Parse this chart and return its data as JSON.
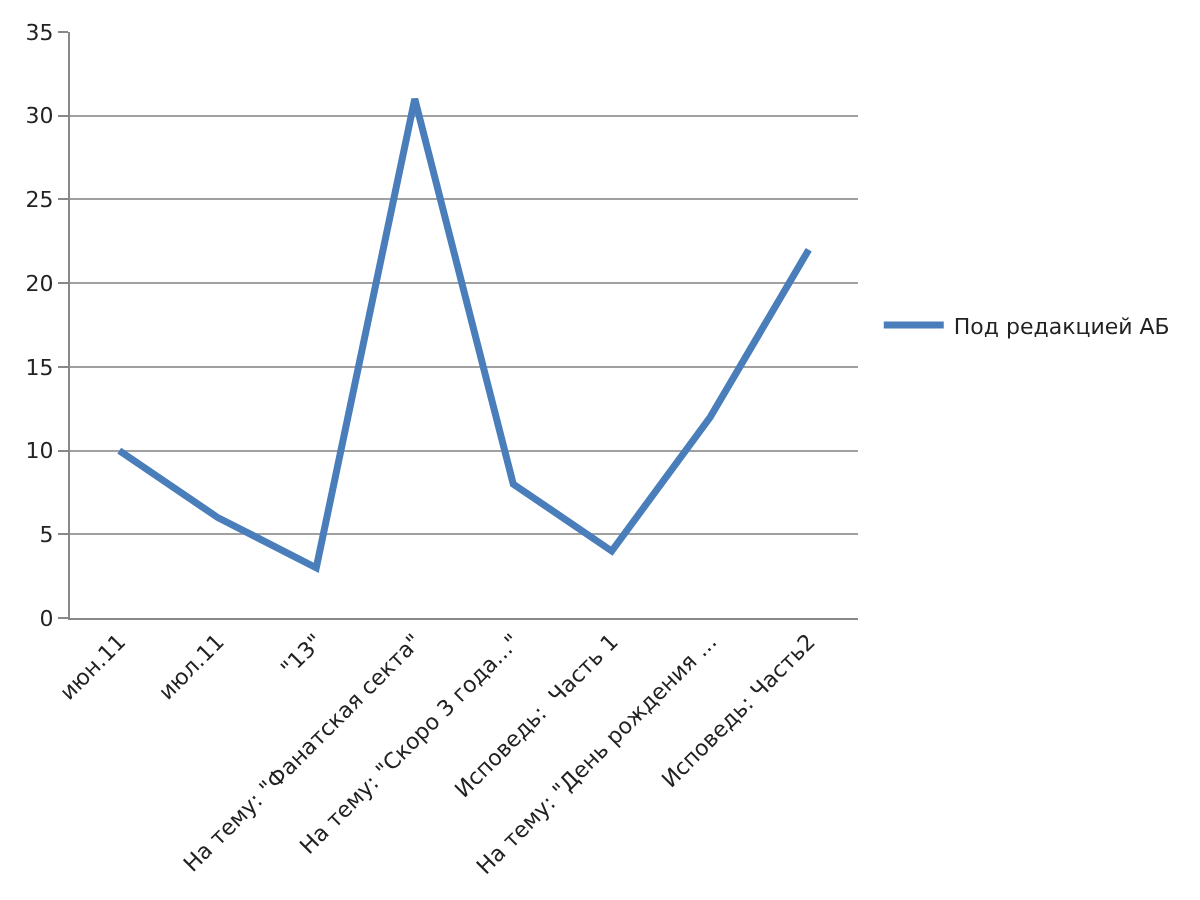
{
  "chart_data": {
    "type": "line",
    "categories": [
      "июн.11",
      "июл.11",
      "\"13\"",
      "На тему: \"Фанатская секта\"",
      "На тему: \"Скоро 3 года...\"",
      "Исповедь:  Часть 1",
      "На тему: \"День рождения ...",
      "Исповедь: Часть2"
    ],
    "series": [
      {
        "name": "Под редакцией АБ",
        "color": "#4a7ebb",
        "values": [
          10,
          6,
          3,
          31,
          8,
          4,
          12,
          22
        ]
      }
    ],
    "ylim": [
      0,
      35
    ],
    "yticks": [
      0,
      5,
      10,
      15,
      20,
      25,
      30,
      35
    ],
    "grid": "y",
    "legend": "right",
    "marker": "none",
    "line_style": "solid"
  }
}
